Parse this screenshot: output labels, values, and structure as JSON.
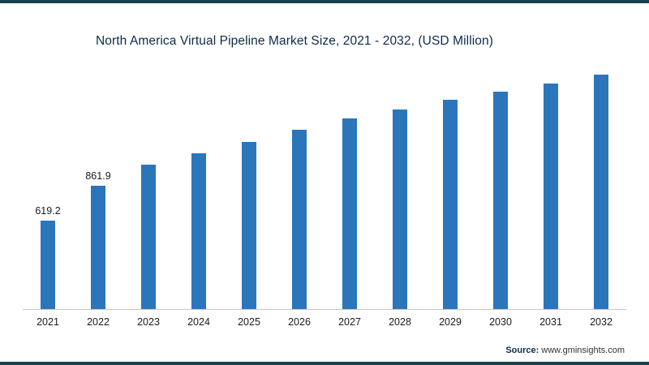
{
  "frame": {
    "border_color": "#16414e",
    "background": "#ffffff"
  },
  "chart_data": {
    "type": "bar",
    "title": "North America Virtual Pipeline Market Size, 2021 - 2032, (USD Million)",
    "categories": [
      "2021",
      "2022",
      "2023",
      "2024",
      "2025",
      "2026",
      "2027",
      "2028",
      "2029",
      "2030",
      "2031",
      "2032"
    ],
    "values": [
      619.2,
      861.9,
      1010,
      1090,
      1170,
      1250,
      1330,
      1395,
      1460,
      1520,
      1575,
      1635
    ],
    "data_labels": [
      "619.2",
      "861.9",
      "",
      "",
      "",
      "",
      "",
      "",
      "",
      "",
      "",
      ""
    ],
    "bar_color": "#2b76ba",
    "xlabel": "",
    "ylabel": "",
    "ylim": [
      0,
      1700
    ],
    "grid": false,
    "legend": false,
    "note": "Only 2021 and 2022 bars show numeric data labels; remaining values estimated from bar heights."
  },
  "source": {
    "label": "Source:",
    "url": "www.gminsights.com"
  }
}
